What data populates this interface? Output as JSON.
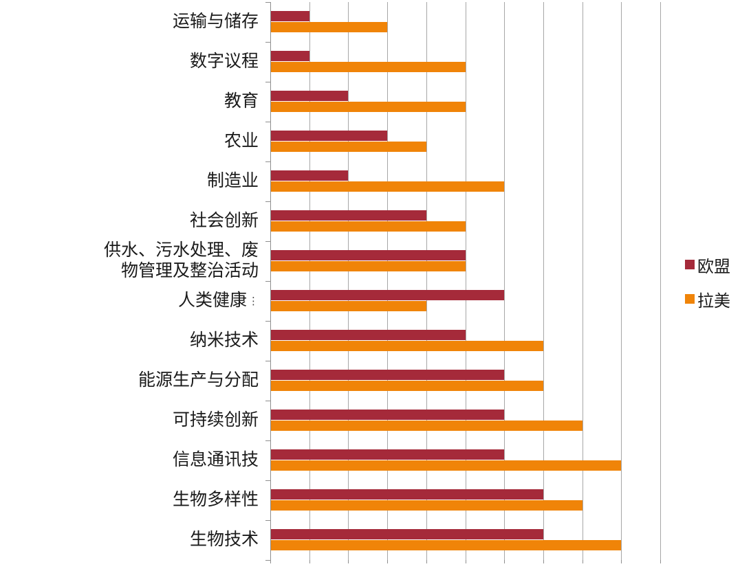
{
  "chart_data": {
    "type": "bar",
    "orientation": "horizontal",
    "title": "",
    "categories": [
      "运输与储存",
      "数字议程",
      "教育",
      "农业",
      "制造业",
      "社会创新",
      "供水、污水处理、废\n物管理及整治活动",
      "人类健康",
      "纳米技术",
      "能源生产与分配",
      "可持续创新",
      "信息通讯技",
      "生物多样性",
      "生物技术"
    ],
    "category_truncated": [
      false,
      false,
      false,
      false,
      false,
      false,
      false,
      true,
      false,
      false,
      false,
      false,
      false,
      false
    ],
    "series": [
      {
        "name": "欧盟",
        "slug": "eu",
        "color": "#A52A3A",
        "values": [
          1,
          1,
          2,
          3,
          2,
          4,
          5,
          6,
          5,
          6,
          6,
          6,
          7,
          7
        ]
      },
      {
        "name": "拉美",
        "slug": "latam",
        "color": "#F08408",
        "values": [
          3,
          5,
          5,
          4,
          6,
          5,
          5,
          4,
          7,
          7,
          8,
          9,
          8,
          9
        ]
      }
    ],
    "xlim": [
      0,
      10
    ],
    "gridline_interval": 1,
    "grid": true,
    "value_axis_tick_labels_visible": false,
    "legend_position": "right",
    "xlabel": "",
    "ylabel": ""
  },
  "colors": {
    "gridline": "#A6A6A6",
    "axis": "#8E8E8E",
    "background": "#FFFFFF",
    "text": "#1A1A1A"
  }
}
